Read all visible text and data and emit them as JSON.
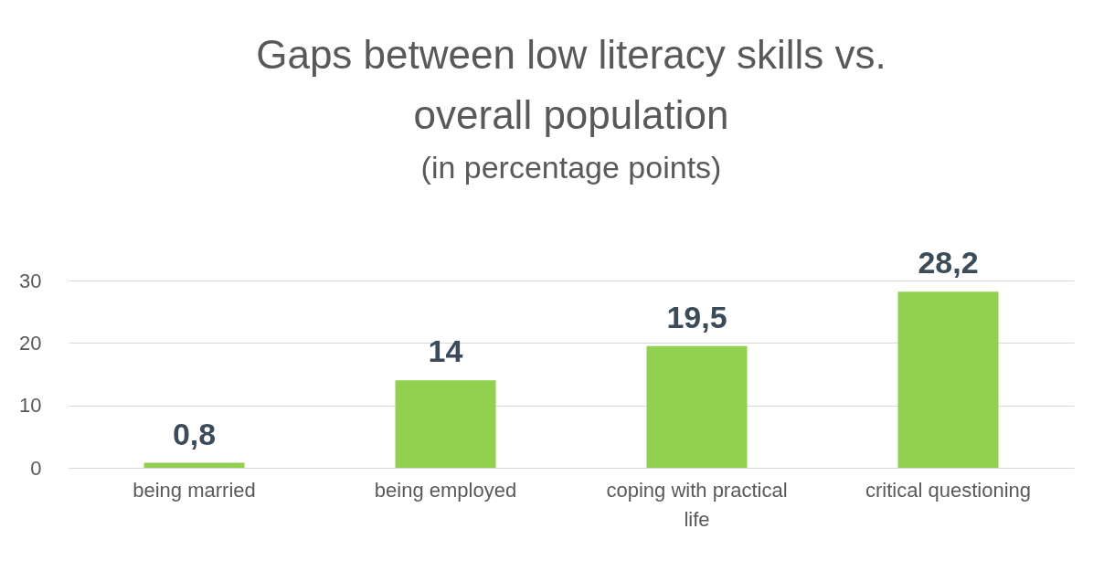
{
  "chart_data": {
    "type": "bar",
    "title": "Gaps between low literacy skills vs. overall population",
    "subtitle": "(in percentage points)",
    "categories": [
      "being married",
      "being employed",
      "coping with practical life",
      "critical questioning"
    ],
    "values": [
      0.8,
      14,
      19.5,
      28.2
    ],
    "value_labels": [
      "0,8",
      "14",
      "19,5",
      "28,2"
    ],
    "color": "#92d050",
    "ylim": [
      0,
      30
    ],
    "yticks": [
      0,
      10,
      20,
      30
    ],
    "grid": "y"
  }
}
